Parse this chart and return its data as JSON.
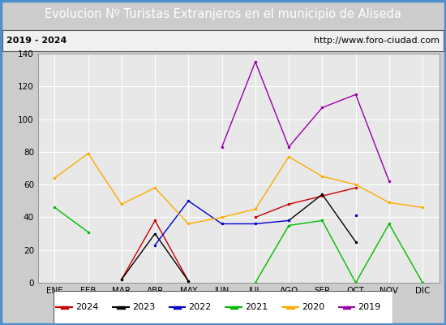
{
  "title": "Evolucion Nº Turistas Extranjeros en el municipio de Aliseda",
  "subtitle_left": "2019 - 2024",
  "subtitle_right": "http://www.foro-ciudad.com",
  "months": [
    "ENE",
    "FEB",
    "MAR",
    "ABR",
    "MAY",
    "JUN",
    "JUL",
    "AGO",
    "SEP",
    "OCT",
    "NOV",
    "DIC"
  ],
  "ylim": [
    0,
    140
  ],
  "yticks": [
    0,
    20,
    40,
    60,
    80,
    100,
    120,
    140
  ],
  "series": {
    "2024": {
      "color": "#cc0000",
      "data": [
        null,
        null,
        2,
        38,
        1,
        null,
        40,
        48,
        53,
        58,
        null,
        null
      ]
    },
    "2023": {
      "color": "#000000",
      "data": [
        null,
        null,
        2,
        30,
        1,
        null,
        null,
        38,
        54,
        25,
        null,
        0
      ]
    },
    "2022": {
      "color": "#0000cc",
      "data": [
        null,
        null,
        null,
        23,
        50,
        36,
        36,
        38,
        null,
        41,
        null,
        null
      ]
    },
    "2021": {
      "color": "#00bb00",
      "data": [
        46,
        31,
        null,
        null,
        null,
        null,
        0,
        35,
        38,
        0,
        36,
        0
      ]
    },
    "2020": {
      "color": "#ffaa00",
      "data": [
        64,
        79,
        48,
        58,
        36,
        40,
        45,
        77,
        65,
        60,
        49,
        46
      ]
    },
    "2019": {
      "color": "#9900aa",
      "data": [
        null,
        null,
        null,
        null,
        null,
        83,
        135,
        83,
        107,
        115,
        62,
        null
      ]
    }
  },
  "legend_order": [
    "2024",
    "2023",
    "2022",
    "2021",
    "2020",
    "2019"
  ],
  "title_bg_color": "#4d8fcc",
  "title_text_color": "#ffffff",
  "subtitle_bg_color": "#f0f0f0",
  "plot_bg_color": "#e8e8e8",
  "outer_bg_color": "#cccccc",
  "grid_color": "#ffffff",
  "border_color": "#4d8fcc",
  "title_fontsize": 10.5,
  "subtitle_fontsize": 8,
  "axis_fontsize": 7.5,
  "legend_fontsize": 8
}
